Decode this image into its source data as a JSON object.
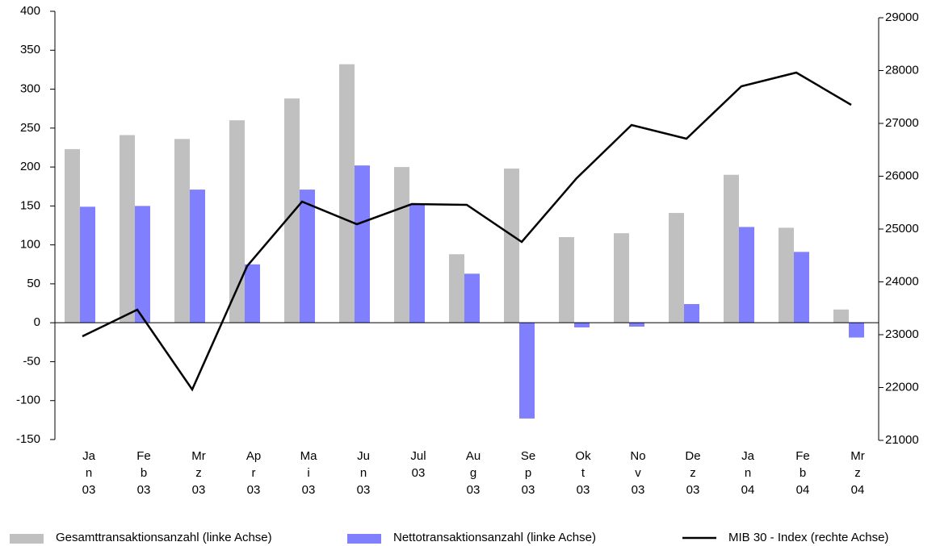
{
  "chart_data": {
    "type": "bar_line",
    "categories": [
      [
        "Ja",
        "n",
        "03"
      ],
      [
        "Fe",
        "b",
        "03"
      ],
      [
        "Mr",
        "z",
        "03"
      ],
      [
        "Ap",
        "r",
        "03"
      ],
      [
        "Ma",
        "i",
        "03"
      ],
      [
        "Ju",
        "n",
        "03"
      ],
      [
        "Jul",
        "03"
      ],
      [
        "Au",
        "g",
        "03"
      ],
      [
        "Se",
        "p",
        "03"
      ],
      [
        "Ok",
        "t",
        "03"
      ],
      [
        "No",
        "v",
        "03"
      ],
      [
        "De",
        "z",
        "03"
      ],
      [
        "Ja",
        "n",
        "04"
      ],
      [
        "Fe",
        "b",
        "04"
      ],
      [
        "Mr",
        "z",
        "04"
      ]
    ],
    "series": [
      {
        "name": "Gesamttransaktionsanzahl (linke Achse)",
        "color": "#c0c0c0",
        "kind": "bar",
        "axis": "y",
        "values": [
          223,
          241,
          236,
          260,
          288,
          332,
          200,
          88,
          198,
          110,
          115,
          141,
          190,
          122,
          17
        ]
      },
      {
        "name": "Nettotransaktionsanzahl (linke Achse)",
        "color": "#8080ff",
        "kind": "bar",
        "axis": "y",
        "values": [
          149,
          150,
          171,
          75,
          171,
          202,
          152,
          63,
          -123,
          -6,
          -5,
          24,
          123,
          91,
          -19
        ]
      },
      {
        "name": "MIB 30 - Index (rechte Achse)",
        "color": "#000000",
        "kind": "line",
        "axis": "y2",
        "values": [
          22970,
          23473,
          21962,
          24298,
          25519,
          25092,
          25473,
          25458,
          24756,
          25962,
          26969,
          26710,
          27702,
          27962,
          27351
        ]
      }
    ],
    "ylim": [
      -150,
      400
    ],
    "yticks": [
      -150,
      -100,
      -50,
      0,
      50,
      100,
      150,
      200,
      250,
      300,
      350,
      400
    ],
    "y2lim": [
      21000,
      29000
    ],
    "y2ticks": [
      21000,
      22000,
      23000,
      24000,
      25000,
      26000,
      27000,
      28000,
      29000
    ],
    "legend": "bottom"
  }
}
